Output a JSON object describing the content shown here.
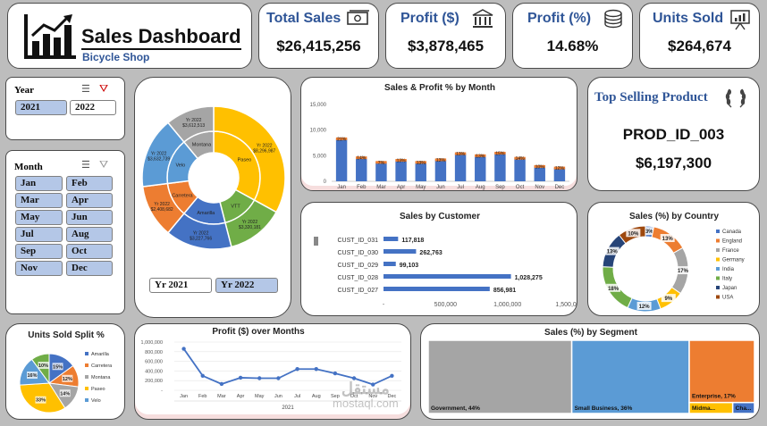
{
  "header": {
    "title": "Sales Dashboard",
    "subtitle": "Bicycle Shop"
  },
  "kpis": {
    "total_sales": {
      "label": "Total Sales",
      "value": "$26,415,256"
    },
    "profit_dollar": {
      "label": "Profit ($)",
      "value": "$3,878,465"
    },
    "profit_pct": {
      "label": "Profit (%)",
      "value": "14.68%"
    },
    "units_sold": {
      "label": "Units Sold",
      "value": "$264,674"
    }
  },
  "year_slicer": {
    "title": "Year",
    "options": [
      "2021",
      "2022"
    ],
    "selected": "2021"
  },
  "month_slicer": {
    "title": "Month",
    "options": [
      "Jan",
      "Feb",
      "Mar",
      "Apr",
      "May",
      "Jun",
      "Jul",
      "Aug",
      "Sep",
      "Oct",
      "Nov",
      "Dec"
    ]
  },
  "sunburst": {
    "buttons": [
      "Yr 2021",
      "Yr 2022"
    ],
    "selected": "Yr 2022"
  },
  "top_product": {
    "title": "Top Selling Product",
    "product": "PROD_ID_003",
    "value": "$6,197,300"
  },
  "watermark": {
    "text": "mostaql.com",
    "logo_text": "مستقل"
  },
  "colors": {
    "blue": "#4472c4",
    "orange": "#ed7d31",
    "gray": "#a5a5a5",
    "gold": "#ffc000",
    "lightblue": "#5b9bd5",
    "green": "#70ad47",
    "navy": "#264478"
  },
  "chart_data": [
    {
      "id": "sunburst",
      "type": "sunburst",
      "inner": [
        {
          "label": "Paseo",
          "value": 33,
          "color": "#ffc000"
        },
        {
          "label": "VTT",
          "value": 13,
          "color": "#70ad47"
        },
        {
          "label": "Amarilla",
          "value": 15,
          "color": "#4472c4"
        },
        {
          "label": "Carretera",
          "value": 12,
          "color": "#ed7d31"
        },
        {
          "label": "Velo",
          "value": 16,
          "color": "#5b9bd5"
        },
        {
          "label": "Montana",
          "value": 11,
          "color": "#a5a5a5"
        }
      ],
      "outer": [
        {
          "parent": "Paseo",
          "label": "Yr 2022 $8,296,987",
          "color": "#ffc000"
        },
        {
          "parent": "VTT",
          "label": "Yr 2022 $3,320,181",
          "color": "#70ad47"
        },
        {
          "parent": "Amarilla",
          "label": "Yr 2022 $3,227,766",
          "color": "#4472c4"
        },
        {
          "parent": "Carretera",
          "label": "Yr 2022 $2,408,682",
          "color": "#ed7d31"
        },
        {
          "parent": "Velo",
          "label": "Yr 2022 $3,632,739",
          "color": "#5b9bd5"
        },
        {
          "parent": "Montana",
          "label": "Yr 2022 $3,612,513",
          "color": "#a5a5a5"
        }
      ]
    },
    {
      "id": "sales_profit_month",
      "type": "bar",
      "title": "Sales & Profit % by Month",
      "categories": [
        "Jan",
        "Feb",
        "Mar",
        "Apr",
        "May",
        "Jun",
        "Jul",
        "Aug",
        "Sep",
        "Oct",
        "Nov",
        "Dec"
      ],
      "values": [
        8300,
        4600,
        3700,
        4100,
        3700,
        4200,
        5400,
        5000,
        5500,
        4500,
        2900,
        2600
      ],
      "labels": [
        "21%",
        "14%",
        "7%",
        "13%",
        "13%",
        "13%",
        "13%",
        "13%",
        "15%",
        "14%",
        "10%",
        "12%"
      ],
      "yticks": [
        "0",
        "5,000",
        "10,000",
        "15,000"
      ],
      "ylim": [
        0,
        15000
      ]
    },
    {
      "id": "sales_by_customer",
      "type": "bar",
      "orientation": "horizontal",
      "title": "Sales by Customer",
      "categories": [
        "CUST_ID_031",
        "CUST_ID_030",
        "CUST_ID_029",
        "CUST_ID_028",
        "CUST_ID_027"
      ],
      "values": [
        117818,
        262763,
        99103,
        1028275,
        856981
      ],
      "labels": [
        "117,818",
        "262,763",
        "99,103",
        "1,028,275",
        "856,981"
      ],
      "xticks": [
        "-",
        "500,000",
        "1,000,000",
        "1,500,000"
      ],
      "xlim": [
        0,
        1500000
      ]
    },
    {
      "id": "sales_by_country",
      "type": "pie",
      "variant": "doughnut",
      "title": "Sales (%) by Country",
      "labels": [
        "Canada",
        "England",
        "France",
        "Germany",
        "India",
        "Italy",
        "Japan",
        "USA"
      ],
      "values": [
        3,
        13,
        17,
        9,
        12,
        18,
        13,
        10
      ],
      "display": [
        "3%",
        "13%",
        "17%",
        "9%",
        "12%",
        "18%",
        "13%",
        "10%"
      ],
      "colors": [
        "#4472c4",
        "#ed7d31",
        "#a5a5a5",
        "#ffc000",
        "#5b9bd5",
        "#70ad47",
        "#264478",
        "#9e480e"
      ]
    },
    {
      "id": "units_sold_split",
      "type": "pie",
      "title": "Units Sold Split %",
      "labels": [
        "Amarilla",
        "Carretera",
        "Montana",
        "Paseo",
        "Velo"
      ],
      "values": [
        15,
        12,
        14,
        33,
        16
      ],
      "display": [
        "15%",
        "12%",
        "14%",
        "33%",
        "16%"
      ],
      "colors": [
        "#4472c4",
        "#ed7d31",
        "#a5a5a5",
        "#ffc000",
        "#5b9bd5"
      ],
      "extra": {
        "value": 10,
        "display": "10%",
        "color": "#70ad47"
      }
    },
    {
      "id": "profit_over_months",
      "type": "line",
      "title": "Profit ($) over Months",
      "categories": [
        "Jan",
        "Feb",
        "Mar",
        "Apr",
        "May",
        "Jun",
        "Jul",
        "Aug",
        "Sep",
        "Oct",
        "Nov",
        "Dec"
      ],
      "values": [
        860000,
        300000,
        130000,
        260000,
        250000,
        250000,
        440000,
        440000,
        350000,
        250000,
        120000,
        300000
      ],
      "yticks": [
        "-",
        "200,000",
        "400,000",
        "600,000",
        "800,000",
        "1,000,000"
      ],
      "ylim": [
        0,
        1000000
      ],
      "xlabel": "2021"
    },
    {
      "id": "sales_by_segment",
      "type": "treemap",
      "title": "Sales (%) by Segment",
      "items": [
        {
          "label": "Government, 44%",
          "value": 44,
          "color": "#a5a5a5"
        },
        {
          "label": "Small Business, 36%",
          "value": 36,
          "color": "#5b9bd5"
        },
        {
          "label": "Enterprise, 17%",
          "value": 17,
          "color": "#ed7d31"
        },
        {
          "label": "Midma...",
          "value": 2,
          "color": "#ffc000"
        },
        {
          "label": "Cha...",
          "value": 1,
          "color": "#4472c4"
        }
      ]
    }
  ]
}
